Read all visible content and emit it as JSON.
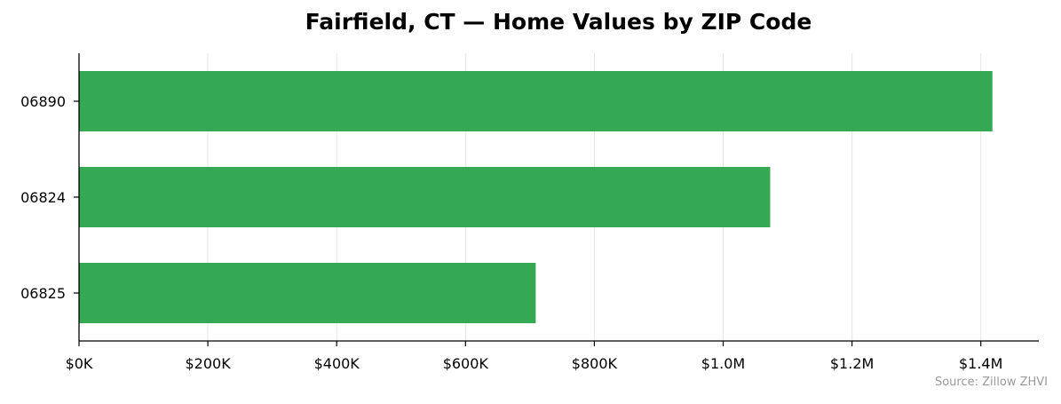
{
  "chart_data": {
    "type": "bar",
    "orientation": "horizontal",
    "title": "Fairfield, CT — Home Values by ZIP Code",
    "categories": [
      "06890",
      "06824",
      "06825"
    ],
    "values": [
      1418000,
      1073000,
      709000
    ],
    "xlim": [
      0,
      1490000
    ],
    "xticks": [
      0,
      200000,
      400000,
      600000,
      800000,
      1000000,
      1200000,
      1400000
    ],
    "xtick_labels": [
      "$0K",
      "$200K",
      "$400K",
      "$600K",
      "$800K",
      "$1.0M",
      "$1.2M",
      "$1.4M"
    ],
    "xlabel": "",
    "ylabel": "",
    "grid": "vertical",
    "bar_color": "#34a853",
    "source": "Source: Zillow ZHVI"
  }
}
